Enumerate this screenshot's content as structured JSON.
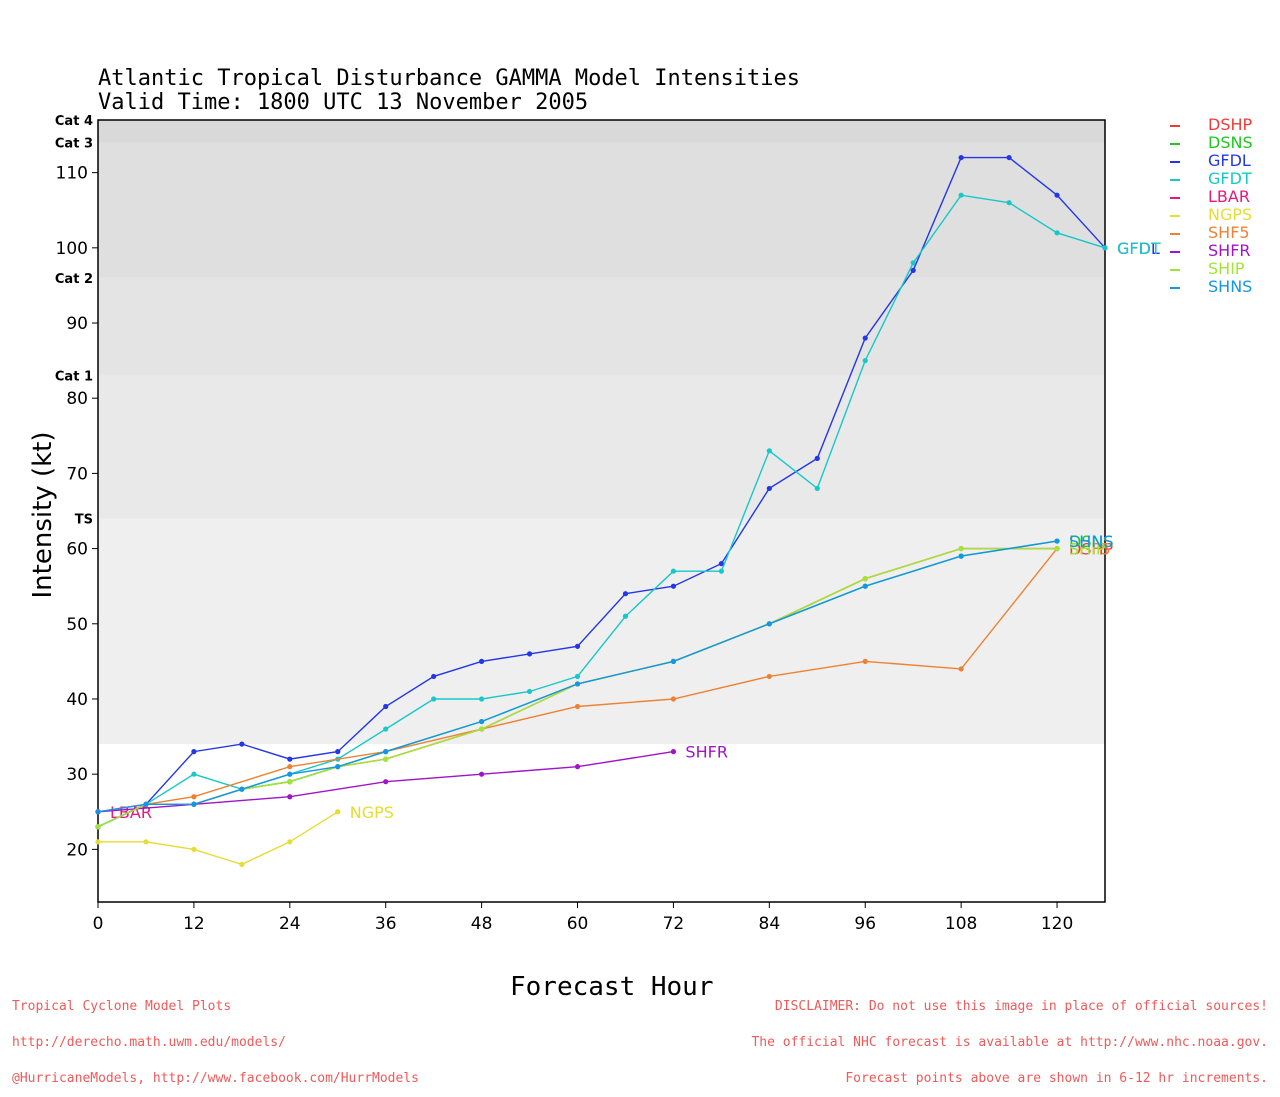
{
  "title_line1": "Atlantic Tropical Disturbance GAMMA Model Intensities",
  "title_line2": "Valid Time: 1800 UTC 13 November 2005",
  "footer_left": [
    "Tropical Cyclone Model Plots",
    "http://derecho.math.uwm.edu/models/",
    "@HurricaneModels, http://www.facebook.com/HurrModels"
  ],
  "footer_right": [
    "DISCLAIMER: Do not use this image in place of official sources!",
    "The official NHC forecast is available at http://www.nhc.noaa.gov.",
    "Forecast points above are shown in 6-12 hr increments."
  ],
  "chart_data": {
    "type": "line",
    "xlabel": "Forecast Hour",
    "ylabel": "Intensity (kt)",
    "xlim": [
      0,
      126
    ],
    "ylim": [
      13,
      117
    ],
    "xticks": [
      0,
      12,
      24,
      36,
      48,
      60,
      72,
      84,
      96,
      108,
      120
    ],
    "yticks": [
      20,
      30,
      40,
      50,
      60,
      70,
      80,
      90,
      100,
      110
    ],
    "category_bands": [
      {
        "label": "TS",
        "from": 34,
        "to": 64,
        "color": "#efefef"
      },
      {
        "label": "Cat 1",
        "from": 64,
        "to": 83,
        "color": "#e9e9e9"
      },
      {
        "label": "Cat 2",
        "from": 83,
        "to": 96,
        "color": "#e4e4e4"
      },
      {
        "label": "Cat 3",
        "from": 96,
        "to": 114,
        "color": "#dfdfdf"
      },
      {
        "label": "Cat 4",
        "from": 114,
        "to": 117,
        "color": "#d9d9d9"
      }
    ],
    "series": [
      {
        "name": "DSHP",
        "color": "#ef3a3a",
        "x": [
          0,
          6,
          12,
          18,
          24,
          30,
          36,
          48,
          60,
          72,
          84,
          96,
          108,
          120
        ],
        "y": [
          23,
          26,
          26,
          28,
          29,
          31,
          32,
          36,
          42,
          45,
          50,
          56,
          60,
          60
        ],
        "end_label": "DSHP"
      },
      {
        "name": "DSNS",
        "color": "#1ec81e",
        "x": [
          0,
          6,
          12,
          18,
          24,
          30,
          36,
          48,
          60,
          72,
          84,
          96,
          108,
          120
        ],
        "y": [
          23,
          26,
          26,
          28,
          29,
          31,
          33,
          37,
          42,
          45,
          50,
          55,
          59,
          61
        ],
        "end_label": "DSNS"
      },
      {
        "name": "GFDL",
        "color": "#2337e6",
        "x": [
          0,
          6,
          12,
          18,
          24,
          30,
          36,
          42,
          48,
          54,
          60,
          66,
          72,
          78,
          84,
          90,
          96,
          102,
          108,
          114,
          120,
          126
        ],
        "y": [
          23,
          26,
          33,
          34,
          32,
          33,
          39,
          43,
          45,
          46,
          47,
          54,
          55,
          58,
          68,
          72,
          88,
          97,
          112,
          112,
          107,
          100
        ],
        "end_label": "GFDL"
      },
      {
        "name": "GFDT",
        "color": "#16c8c8",
        "x": [
          0,
          6,
          12,
          18,
          24,
          30,
          36,
          42,
          48,
          54,
          60,
          66,
          72,
          78,
          84,
          90,
          96,
          102,
          108,
          114,
          120,
          126
        ],
        "y": [
          23,
          26,
          30,
          28,
          30,
          32,
          36,
          40,
          40,
          41,
          43,
          51,
          57,
          57,
          73,
          68,
          85,
          98,
          107,
          106,
          102,
          100
        ],
        "end_label": "GFDT"
      },
      {
        "name": "LBAR",
        "color": "#e6197d",
        "x": [
          0
        ],
        "y": [
          25
        ],
        "end_label": "LBAR"
      },
      {
        "name": "NGPS",
        "color": "#e6dc32",
        "x": [
          0,
          6,
          12,
          18,
          24,
          30
        ],
        "y": [
          21,
          21,
          20,
          18,
          21,
          25
        ],
        "end_label": "NGPS"
      },
      {
        "name": "SHF5",
        "color": "#ef8232",
        "x": [
          0,
          6,
          12,
          24,
          36,
          48,
          60,
          72,
          84,
          96,
          108,
          120
        ],
        "y": [
          25,
          26,
          27,
          31,
          33,
          36,
          39,
          40,
          43,
          45,
          44,
          60
        ],
        "end_label": "SHF5"
      },
      {
        "name": "SHFR",
        "color": "#a014c8",
        "x": [
          0,
          12,
          24,
          36,
          48,
          60,
          72
        ],
        "y": [
          25,
          26,
          27,
          29,
          30,
          31,
          33
        ],
        "end_label": "SHFR"
      },
      {
        "name": "SHIP",
        "color": "#a0e632",
        "x": [
          0,
          6,
          12,
          18,
          24,
          30,
          36,
          48,
          60,
          72,
          84,
          96,
          108,
          120
        ],
        "y": [
          23,
          26,
          26,
          28,
          29,
          31,
          32,
          36,
          42,
          45,
          50,
          56,
          60,
          60
        ],
        "end_label": "SHIP"
      },
      {
        "name": "SHNS",
        "color": "#1496e6",
        "x": [
          0,
          6,
          12,
          18,
          24,
          30,
          36,
          48,
          60,
          72,
          84,
          96,
          108,
          120
        ],
        "y": [
          25,
          26,
          26,
          28,
          30,
          31,
          33,
          37,
          42,
          45,
          50,
          55,
          59,
          61
        ],
        "end_label": "SHNS"
      }
    ]
  },
  "legend": [
    {
      "name": "DSHP",
      "color": "#ef3a3a"
    },
    {
      "name": "DSNS",
      "color": "#1ec81e"
    },
    {
      "name": "GFDL",
      "color": "#2337e6"
    },
    {
      "name": "GFDT",
      "color": "#16c8c8"
    },
    {
      "name": "LBAR",
      "color": "#e6197d"
    },
    {
      "name": "NGPS",
      "color": "#e6dc32"
    },
    {
      "name": "SHF5",
      "color": "#ef8232"
    },
    {
      "name": "SHFR",
      "color": "#a014c8"
    },
    {
      "name": "SHIP",
      "color": "#a0e632"
    },
    {
      "name": "SHNS",
      "color": "#1496e6"
    }
  ]
}
